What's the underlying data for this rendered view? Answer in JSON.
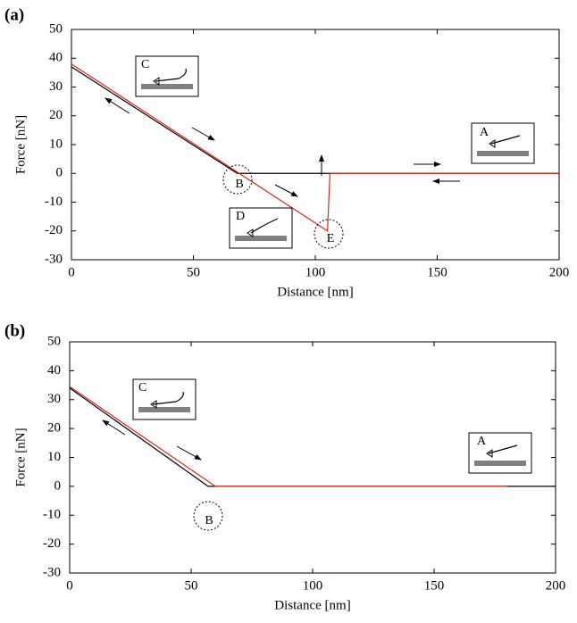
{
  "chart_data": [
    {
      "type": "line",
      "panel": "(a)",
      "xlabel": "Distance [nm]",
      "ylabel": "Force [nN]",
      "xlim": [
        0,
        200
      ],
      "ylim": [
        -30,
        50
      ],
      "xticks": [
        0,
        50,
        100,
        150,
        200
      ],
      "yticks": [
        -30,
        -20,
        -10,
        0,
        10,
        20,
        30,
        40,
        50
      ],
      "annotations": [
        "A",
        "B",
        "C",
        "D",
        "E"
      ],
      "series": [
        {
          "color": "#000000",
          "x": [
            0,
            68,
            200
          ],
          "values": [
            37,
            0,
            0
          ]
        },
        {
          "color": "#e0281e",
          "x": [
            0,
            105,
            106,
            200
          ],
          "values": [
            38,
            -20,
            0,
            0
          ]
        }
      ]
    },
    {
      "type": "line",
      "panel": "(b)",
      "xlabel": "Distance [nm]",
      "ylabel": "Force [nN]",
      "xlim": [
        0,
        200
      ],
      "ylim": [
        -30,
        50
      ],
      "xticks": [
        0,
        50,
        100,
        150,
        200
      ],
      "yticks": [
        -30,
        -20,
        -10,
        0,
        10,
        20,
        30,
        40,
        50
      ],
      "annotations": [
        "A",
        "B",
        "C"
      ],
      "series": [
        {
          "color": "#000000",
          "x": [
            0,
            57,
            200
          ],
          "values": [
            34,
            0,
            0
          ]
        },
        {
          "color": "#e0281e",
          "x": [
            0,
            60,
            180
          ],
          "values": [
            34.5,
            0,
            0
          ]
        }
      ]
    }
  ]
}
